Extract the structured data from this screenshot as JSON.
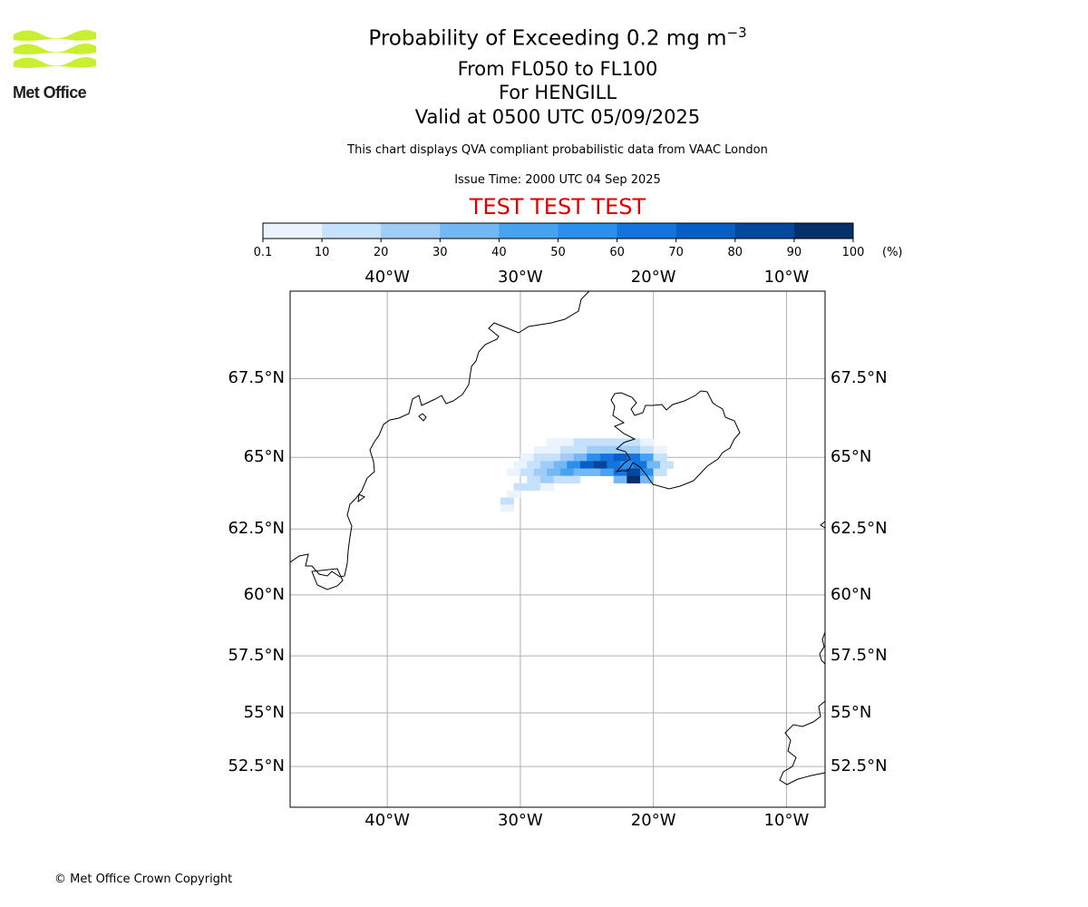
{
  "logo": {
    "text": "Met Office",
    "colors": {
      "waves": "#c8f030",
      "text": "#1e1e1e"
    },
    "icon": "met-office-waves-logo"
  },
  "titles": {
    "main_prefix": "Probability of Exceeding 0.2 mg m",
    "main_exponent": "−3",
    "levels": "From FL050 to FL100",
    "volcano": "For HENGILL",
    "valid": "Valid at 0500 UTC 05/09/2025",
    "description": "This chart displays QVA compliant probabilistic data from VAAC London",
    "issue_time": "Issue Time: 2000 UTC 04 Sep 2025",
    "banner": "TEST TEST TEST"
  },
  "colorbar": {
    "ticks": [
      "0.1",
      "10",
      "20",
      "30",
      "40",
      "50",
      "60",
      "70",
      "80",
      "90",
      "100"
    ],
    "unit": "(%)",
    "colors": [
      "#eaf3fe",
      "#c5e1fb",
      "#9fcdf8",
      "#73b8f5",
      "#48a2f2",
      "#2b8fec",
      "#1474dd",
      "#075ec4",
      "#05479c",
      "#05306b"
    ]
  },
  "map": {
    "extent": {
      "lon_min": -47.3,
      "lon_max": -7.1,
      "lat_min": 50.5,
      "lat_max": 70.0
    },
    "lon_labels": [
      "40°W",
      "30°W",
      "20°W",
      "10°W"
    ],
    "lat_labels": [
      "67.5°N",
      "65°N",
      "62.5°N",
      "60°N",
      "57.5°N",
      "55°N",
      "52.5°N"
    ],
    "colors": {
      "grid": "#b0b0b0",
      "coast": "#000000",
      "frame": "#000000"
    },
    "probability_cells": [
      {
        "lon": -27.5,
        "lat": 65.5,
        "p": 5
      },
      {
        "lon": -26.5,
        "lat": 65.5,
        "p": 5
      },
      {
        "lon": -25.5,
        "lat": 65.5,
        "p": 15
      },
      {
        "lon": -24.5,
        "lat": 65.5,
        "p": 15
      },
      {
        "lon": -23.5,
        "lat": 65.5,
        "p": 15
      },
      {
        "lon": -22.5,
        "lat": 65.5,
        "p": 15
      },
      {
        "lon": -21.5,
        "lat": 65.5,
        "p": 15
      },
      {
        "lon": -20.5,
        "lat": 65.5,
        "p": 5
      },
      {
        "lon": -28.5,
        "lat": 65.25,
        "p": 5
      },
      {
        "lon": -27.5,
        "lat": 65.25,
        "p": 5
      },
      {
        "lon": -26.5,
        "lat": 65.25,
        "p": 15
      },
      {
        "lon": -25.5,
        "lat": 65.25,
        "p": 15
      },
      {
        "lon": -24.5,
        "lat": 65.25,
        "p": 25
      },
      {
        "lon": -23.5,
        "lat": 65.25,
        "p": 25
      },
      {
        "lon": -22.5,
        "lat": 65.25,
        "p": 25
      },
      {
        "lon": -21.5,
        "lat": 65.25,
        "p": 25
      },
      {
        "lon": -20.5,
        "lat": 65.25,
        "p": 15
      },
      {
        "lon": -19.5,
        "lat": 65.25,
        "p": 5
      },
      {
        "lon": -29.5,
        "lat": 65.0,
        "p": 5
      },
      {
        "lon": -28.5,
        "lat": 65.0,
        "p": 15
      },
      {
        "lon": -27.5,
        "lat": 65.0,
        "p": 15
      },
      {
        "lon": -26.5,
        "lat": 65.0,
        "p": 25
      },
      {
        "lon": -25.5,
        "lat": 65.0,
        "p": 35
      },
      {
        "lon": -24.5,
        "lat": 65.0,
        "p": 55
      },
      {
        "lon": -23.5,
        "lat": 65.0,
        "p": 65
      },
      {
        "lon": -22.5,
        "lat": 65.0,
        "p": 75
      },
      {
        "lon": -21.5,
        "lat": 65.0,
        "p": 65
      },
      {
        "lon": -20.5,
        "lat": 65.0,
        "p": 45
      },
      {
        "lon": -19.5,
        "lat": 65.0,
        "p": 15
      },
      {
        "lon": -30.0,
        "lat": 64.75,
        "p": 5
      },
      {
        "lon": -29.0,
        "lat": 64.75,
        "p": 15
      },
      {
        "lon": -28.0,
        "lat": 64.75,
        "p": 25
      },
      {
        "lon": -27.0,
        "lat": 64.75,
        "p": 35
      },
      {
        "lon": -26.0,
        "lat": 64.75,
        "p": 55
      },
      {
        "lon": -25.0,
        "lat": 64.75,
        "p": 75
      },
      {
        "lon": -24.0,
        "lat": 64.75,
        "p": 85
      },
      {
        "lon": -23.0,
        "lat": 64.75,
        "p": 65
      },
      {
        "lon": -22.0,
        "lat": 64.75,
        "p": 55
      },
      {
        "lon": -21.0,
        "lat": 64.75,
        "p": 65
      },
      {
        "lon": -20.0,
        "lat": 64.75,
        "p": 35
      },
      {
        "lon": -19.0,
        "lat": 64.75,
        "p": 15
      },
      {
        "lon": -30.5,
        "lat": 64.5,
        "p": 5
      },
      {
        "lon": -29.5,
        "lat": 64.5,
        "p": 15
      },
      {
        "lon": -28.5,
        "lat": 64.5,
        "p": 25
      },
      {
        "lon": -27.5,
        "lat": 64.5,
        "p": 35
      },
      {
        "lon": -26.5,
        "lat": 64.5,
        "p": 45
      },
      {
        "lon": -25.5,
        "lat": 64.5,
        "p": 35
      },
      {
        "lon": -24.5,
        "lat": 64.5,
        "p": 35
      },
      {
        "lon": -23.5,
        "lat": 64.5,
        "p": 45
      },
      {
        "lon": -22.5,
        "lat": 64.5,
        "p": 65
      },
      {
        "lon": -21.5,
        "lat": 64.5,
        "p": 85
      },
      {
        "lon": -20.5,
        "lat": 64.5,
        "p": 55
      },
      {
        "lon": -19.5,
        "lat": 64.5,
        "p": 15
      },
      {
        "lon": -29.0,
        "lat": 64.25,
        "p": 15
      },
      {
        "lon": -28.0,
        "lat": 64.25,
        "p": 25
      },
      {
        "lon": -27.0,
        "lat": 64.25,
        "p": 15
      },
      {
        "lon": -26.0,
        "lat": 64.25,
        "p": 15
      },
      {
        "lon": -22.5,
        "lat": 64.25,
        "p": 35
      },
      {
        "lon": -21.5,
        "lat": 64.25,
        "p": 95
      },
      {
        "lon": -20.5,
        "lat": 64.25,
        "p": 35
      },
      {
        "lon": -30.0,
        "lat": 64.0,
        "p": 15
      },
      {
        "lon": -29.0,
        "lat": 64.0,
        "p": 15
      },
      {
        "lon": -28.0,
        "lat": 64.0,
        "p": 5
      },
      {
        "lon": -30.5,
        "lat": 63.75,
        "p": 5
      },
      {
        "lon": -31.0,
        "lat": 63.5,
        "p": 15
      },
      {
        "lon": -31.0,
        "lat": 63.25,
        "p": 5
      }
    ]
  },
  "footer": {
    "copyright": "© Met Office Crown Copyright"
  }
}
